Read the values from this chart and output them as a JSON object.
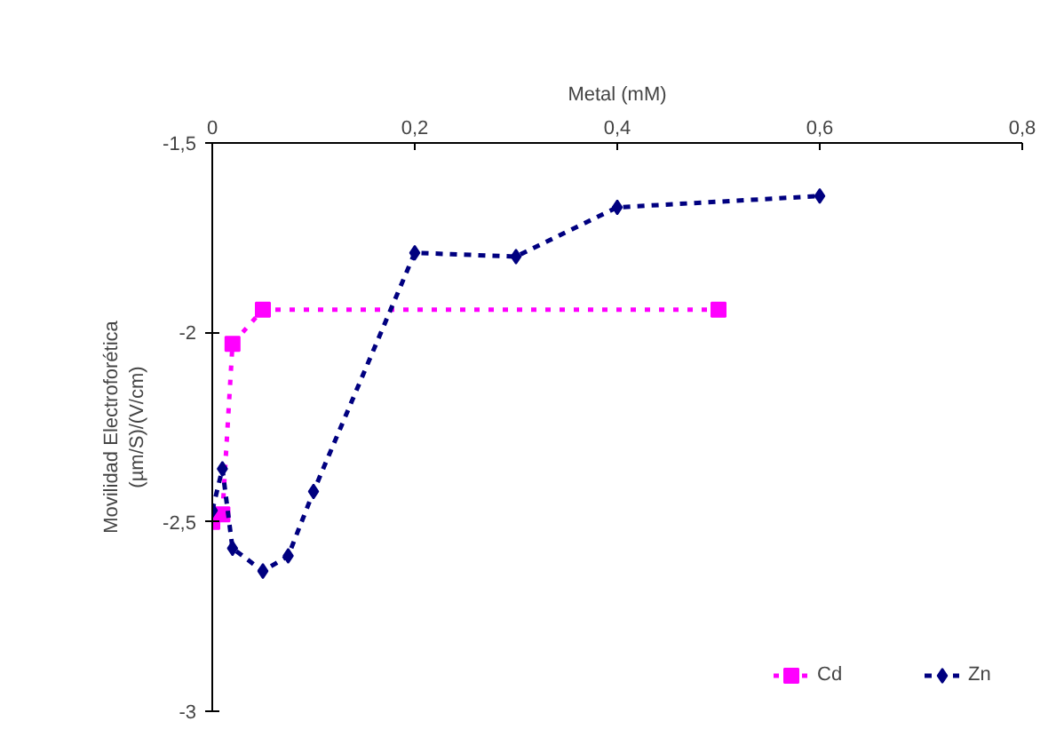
{
  "chart_data": {
    "type": "line",
    "xlabel": "Metal (mM)",
    "ylabel": "Movilidad Electroforética\n(µm/S)/(V/cm)",
    "xlim": [
      0,
      0.8
    ],
    "ylim": [
      -3,
      -1.5
    ],
    "xticks": [
      0,
      {
        "value": 0.2,
        "label": "0,2"
      },
      {
        "value": 0.4,
        "label": "0,4"
      },
      {
        "value": 0.6,
        "label": "0,6"
      },
      {
        "value": 0.8,
        "label": "0,8"
      }
    ],
    "yticks": [
      -3,
      {
        "value": -2.5,
        "label": "-2,5"
      },
      -2,
      {
        "value": -1.5,
        "label": "-1,5"
      }
    ],
    "grid": false,
    "legend": "bottom right",
    "series": [
      {
        "name": "Cd",
        "color": "#ff00ff",
        "marker": "square",
        "line_style": "dotted",
        "x": [
          0,
          0.01,
          0.02,
          0.05,
          0.5
        ],
        "values": [
          -2.5,
          -2.48,
          -2.03,
          -1.94,
          -1.94
        ]
      },
      {
        "name": "Zn",
        "color": "#000080",
        "marker": "diamond",
        "line_style": "dashed",
        "x": [
          0,
          0.01,
          0.02,
          0.05,
          0.075,
          0.1,
          0.2,
          0.3,
          0.4,
          0.6
        ],
        "values": [
          -2.47,
          -2.36,
          -2.57,
          -2.63,
          -2.59,
          -2.42,
          -1.79,
          -1.8,
          -1.67,
          -1.64
        ]
      }
    ]
  }
}
